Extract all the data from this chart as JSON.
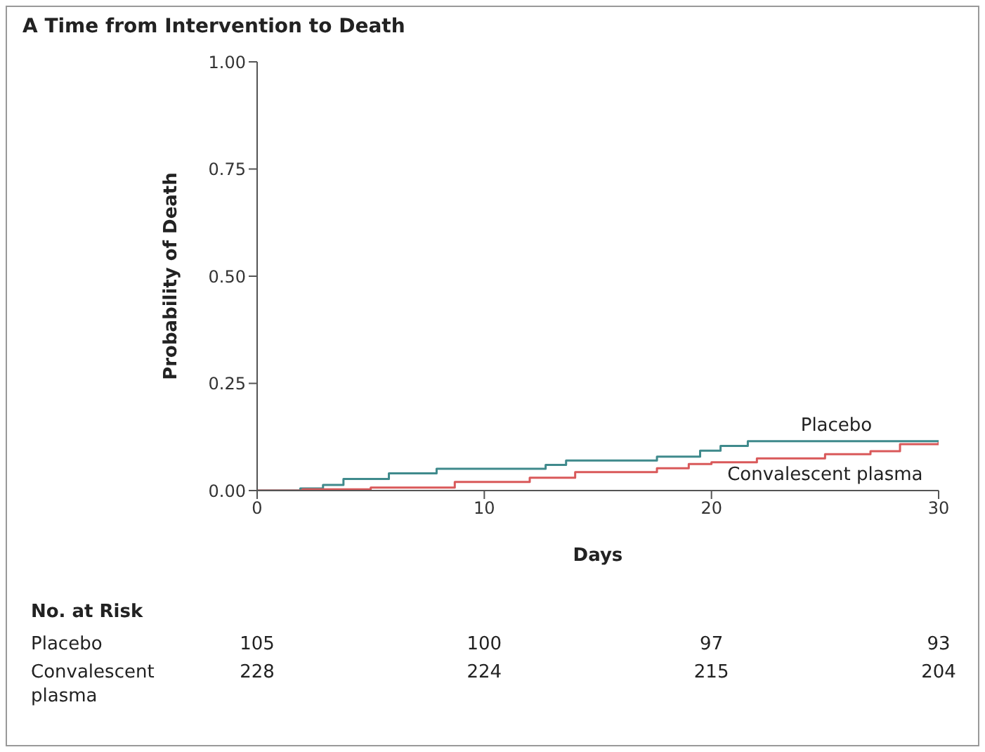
{
  "chart_data": {
    "type": "step",
    "title": "A Time from Intervention to Death",
    "xlabel": "Days",
    "ylabel": "Probability of Death",
    "xlim": [
      0,
      30
    ],
    "xticks": [
      0,
      10,
      20,
      30
    ],
    "ylim": [
      0,
      1
    ],
    "yticks": [
      {
        "value": 0,
        "label": "0.00"
      },
      {
        "value": 0.25,
        "label": "0.25"
      },
      {
        "value": 0.5,
        "label": "0.50"
      },
      {
        "value": 0.75,
        "label": "0.75"
      },
      {
        "value": 1,
        "label": "1.00"
      }
    ],
    "grid": false,
    "series": [
      {
        "name": "Placebo",
        "color": "#3f8a8c",
        "x": [
          0,
          1.9,
          2.9,
          3.8,
          5.8,
          7.9,
          12.7,
          13.6,
          17.6,
          19.5,
          20.4,
          21.6,
          30
        ],
        "values": [
          0,
          0.005,
          0.013,
          0.027,
          0.04,
          0.051,
          0.06,
          0.07,
          0.079,
          0.093,
          0.104,
          0.115,
          0.115
        ]
      },
      {
        "name": "Convalescent plasma",
        "color": "#d9595a",
        "x": [
          0,
          2,
          5,
          8.7,
          12,
          14,
          17.6,
          19,
          20,
          22,
          25,
          27,
          28.3,
          30
        ],
        "values": [
          0,
          0.003,
          0.007,
          0.02,
          0.03,
          0.043,
          0.052,
          0.062,
          0.066,
          0.075,
          0.085,
          0.092,
          0.108,
          0.113
        ]
      }
    ],
    "annotations": [
      "No. at Risk",
      "Placebo",
      "105",
      "100",
      "97",
      "93",
      "Convalescent plasma",
      "228",
      "224",
      "215",
      "204"
    ]
  }
}
